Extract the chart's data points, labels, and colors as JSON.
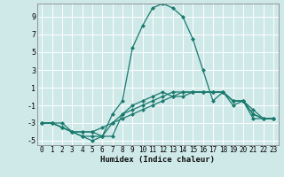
{
  "xlabel": "Humidex (Indice chaleur)",
  "ylabel": "",
  "background_color": "#cfe9e9",
  "grid_color": "#ffffff",
  "line_color": "#1a7a6e",
  "xlim": [
    -0.5,
    23.5
  ],
  "ylim": [
    -5.5,
    10.5
  ],
  "xticks": [
    0,
    1,
    2,
    3,
    4,
    5,
    6,
    7,
    8,
    9,
    10,
    11,
    12,
    13,
    14,
    15,
    16,
    17,
    18,
    19,
    20,
    21,
    22,
    23
  ],
  "yticks": [
    -5,
    -3,
    -1,
    1,
    3,
    5,
    7,
    9
  ],
  "series": [
    {
      "x": [
        0,
        1,
        2,
        3,
        4,
        5,
        6,
        7,
        8,
        9,
        10,
        11,
        12,
        13,
        14,
        15,
        16,
        17,
        18,
        19,
        20,
        21,
        22,
        23
      ],
      "y": [
        -3,
        -3,
        -3.5,
        -4,
        -4.5,
        -4.5,
        -4.5,
        -2,
        -0.5,
        5.5,
        8,
        10,
        10.5,
        10,
        9,
        6.5,
        3,
        -0.5,
        0.5,
        -1,
        -0.5,
        -2.5,
        -2.5,
        -2.5
      ]
    },
    {
      "x": [
        0,
        1,
        2,
        3,
        4,
        5,
        6,
        7,
        8,
        9,
        10,
        11,
        12,
        13,
        14,
        15,
        16,
        17,
        18,
        19,
        20,
        21,
        22,
        23
      ],
      "y": [
        -3,
        -3,
        -3.5,
        -4,
        -4,
        -4,
        -4.5,
        -3,
        -2.5,
        -2,
        -1.5,
        -1,
        -0.5,
        0,
        0.5,
        0.5,
        0.5,
        0.5,
        0.5,
        -0.5,
        -0.5,
        -2,
        -2.5,
        -2.5
      ]
    },
    {
      "x": [
        0,
        1,
        2,
        3,
        4,
        5,
        6,
        7,
        8,
        9,
        10,
        11,
        12,
        13,
        14,
        15,
        16,
        17,
        18,
        19,
        20,
        21,
        22,
        23
      ],
      "y": [
        -3,
        -3,
        -3.5,
        -4,
        -4,
        -4,
        -3.5,
        -3,
        -2.0,
        -1.5,
        -1.0,
        -0.5,
        0,
        0.5,
        0.5,
        0.5,
        0.5,
        0.5,
        0.5,
        -0.5,
        -0.5,
        -1.5,
        -2.5,
        -2.5
      ]
    },
    {
      "x": [
        0,
        1,
        2,
        3,
        4,
        5,
        6,
        7,
        8,
        9,
        10,
        11,
        12,
        13,
        14,
        15,
        16,
        17,
        18,
        19,
        20,
        21,
        22,
        23
      ],
      "y": [
        -3,
        -3,
        -3,
        -4,
        -4.5,
        -5,
        -4.5,
        -4.5,
        -2,
        -1,
        -0.5,
        0,
        0.5,
        0,
        0,
        0.5,
        0.5,
        0.5,
        0.5,
        -0.5,
        -0.5,
        -2,
        -2.5,
        -2.5
      ]
    }
  ]
}
